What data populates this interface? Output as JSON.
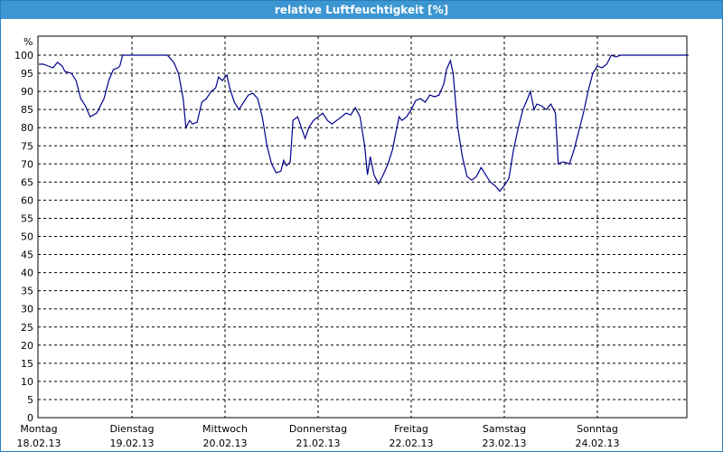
{
  "window": {
    "title": "relative Luftfeuchtigkeit [%]"
  },
  "chart_data": {
    "type": "line",
    "title": "relative Luftfeuchtigkeit [%]",
    "ylabel": "%",
    "ylim": [
      0,
      100
    ],
    "yticks": [
      0,
      5,
      10,
      15,
      20,
      25,
      30,
      35,
      40,
      45,
      50,
      55,
      60,
      65,
      70,
      75,
      80,
      85,
      90,
      95,
      100
    ],
    "xlim": [
      0,
      7
    ],
    "grid": true,
    "x_unit": "days since Montag 18.02.13 00:00",
    "categories": [
      {
        "day": "Montag",
        "date": "18.02.13"
      },
      {
        "day": "Dienstag",
        "date": "19.02.13"
      },
      {
        "day": "Mittwoch",
        "date": "20.02.13"
      },
      {
        "day": "Donnerstag",
        "date": "21.02.13"
      },
      {
        "day": "Freitag",
        "date": "22.02.13"
      },
      {
        "day": "Samstag",
        "date": "23.02.13"
      },
      {
        "day": "Sonntag",
        "date": "24.02.13"
      }
    ],
    "series": [
      {
        "color": "#00008b",
        "points": [
          [
            0.0,
            97.5
          ],
          [
            0.05,
            97.5
          ],
          [
            0.1,
            97
          ],
          [
            0.15,
            96.5
          ],
          [
            0.2,
            98
          ],
          [
            0.25,
            97
          ],
          [
            0.28,
            95.5
          ],
          [
            0.35,
            95
          ],
          [
            0.4,
            93
          ],
          [
            0.45,
            88
          ],
          [
            0.5,
            86
          ],
          [
            0.55,
            83
          ],
          [
            0.62,
            84
          ],
          [
            0.7,
            88
          ],
          [
            0.75,
            93
          ],
          [
            0.8,
            96
          ],
          [
            0.85,
            96.5
          ],
          [
            0.87,
            97
          ],
          [
            0.9,
            100
          ],
          [
            1.0,
            100
          ],
          [
            1.1,
            100
          ],
          [
            1.2,
            100
          ],
          [
            1.3,
            100
          ],
          [
            1.38,
            100
          ],
          [
            1.45,
            98
          ],
          [
            1.5,
            95
          ],
          [
            1.55,
            88
          ],
          [
            1.58,
            80
          ],
          [
            1.62,
            82
          ],
          [
            1.65,
            81
          ],
          [
            1.7,
            81.5
          ],
          [
            1.75,
            87
          ],
          [
            1.8,
            88
          ],
          [
            1.85,
            90
          ],
          [
            1.9,
            91
          ],
          [
            1.93,
            94
          ],
          [
            1.97,
            93
          ],
          [
            2.02,
            94.5
          ],
          [
            2.05,
            91
          ],
          [
            2.1,
            87
          ],
          [
            2.15,
            85
          ],
          [
            2.2,
            87
          ],
          [
            2.25,
            89
          ],
          [
            2.3,
            89.5
          ],
          [
            2.35,
            88
          ],
          [
            2.4,
            83
          ],
          [
            2.45,
            75
          ],
          [
            2.5,
            70
          ],
          [
            2.55,
            67.5
          ],
          [
            2.6,
            68
          ],
          [
            2.63,
            71
          ],
          [
            2.66,
            69.5
          ],
          [
            2.7,
            70.5
          ],
          [
            2.73,
            82
          ],
          [
            2.78,
            83
          ],
          [
            2.82,
            80
          ],
          [
            2.86,
            77
          ],
          [
            2.9,
            80
          ],
          [
            2.95,
            82
          ],
          [
            3.0,
            83
          ],
          [
            3.05,
            84
          ],
          [
            3.1,
            82
          ],
          [
            3.15,
            81
          ],
          [
            3.2,
            82
          ],
          [
            3.25,
            83
          ],
          [
            3.3,
            84
          ],
          [
            3.35,
            83.5
          ],
          [
            3.4,
            85.5
          ],
          [
            3.45,
            83
          ],
          [
            3.5,
            75
          ],
          [
            3.53,
            67
          ],
          [
            3.56,
            72
          ],
          [
            3.6,
            67
          ],
          [
            3.65,
            64.5
          ],
          [
            3.7,
            67
          ],
          [
            3.75,
            70
          ],
          [
            3.8,
            74
          ],
          [
            3.83,
            78
          ],
          [
            3.87,
            83
          ],
          [
            3.9,
            82
          ],
          [
            3.95,
            83
          ],
          [
            4.0,
            85
          ],
          [
            4.05,
            87.5
          ],
          [
            4.1,
            88
          ],
          [
            4.15,
            87
          ],
          [
            4.2,
            89
          ],
          [
            4.25,
            88.5
          ],
          [
            4.3,
            89
          ],
          [
            4.35,
            92
          ],
          [
            4.38,
            96
          ],
          [
            4.42,
            98.5
          ],
          [
            4.45,
            95
          ],
          [
            4.5,
            80
          ],
          [
            4.55,
            72
          ],
          [
            4.6,
            66.5
          ],
          [
            4.65,
            65.5
          ],
          [
            4.7,
            66.5
          ],
          [
            4.75,
            69
          ],
          [
            4.8,
            67
          ],
          [
            4.85,
            65
          ],
          [
            4.9,
            64
          ],
          [
            4.95,
            62.5
          ],
          [
            5.0,
            64
          ],
          [
            5.05,
            66
          ],
          [
            5.1,
            74
          ],
          [
            5.15,
            80
          ],
          [
            5.2,
            85
          ],
          [
            5.25,
            88
          ],
          [
            5.28,
            90
          ],
          [
            5.32,
            85
          ],
          [
            5.35,
            86.5
          ],
          [
            5.4,
            86
          ],
          [
            5.45,
            85
          ],
          [
            5.5,
            86.5
          ],
          [
            5.55,
            84
          ],
          [
            5.58,
            70
          ],
          [
            5.62,
            70.5
          ],
          [
            5.65,
            70.5
          ],
          [
            5.7,
            70
          ],
          [
            5.75,
            74
          ],
          [
            5.8,
            79
          ],
          [
            5.85,
            84
          ],
          [
            5.9,
            90
          ],
          [
            5.95,
            95
          ],
          [
            6.0,
            97
          ],
          [
            6.05,
            96.5
          ],
          [
            6.1,
            97.5
          ],
          [
            6.15,
            100
          ],
          [
            6.2,
            99.5
          ],
          [
            6.25,
            100
          ],
          [
            6.4,
            100
          ],
          [
            6.6,
            100
          ],
          [
            6.8,
            100
          ],
          [
            6.98,
            100
          ]
        ]
      }
    ]
  }
}
